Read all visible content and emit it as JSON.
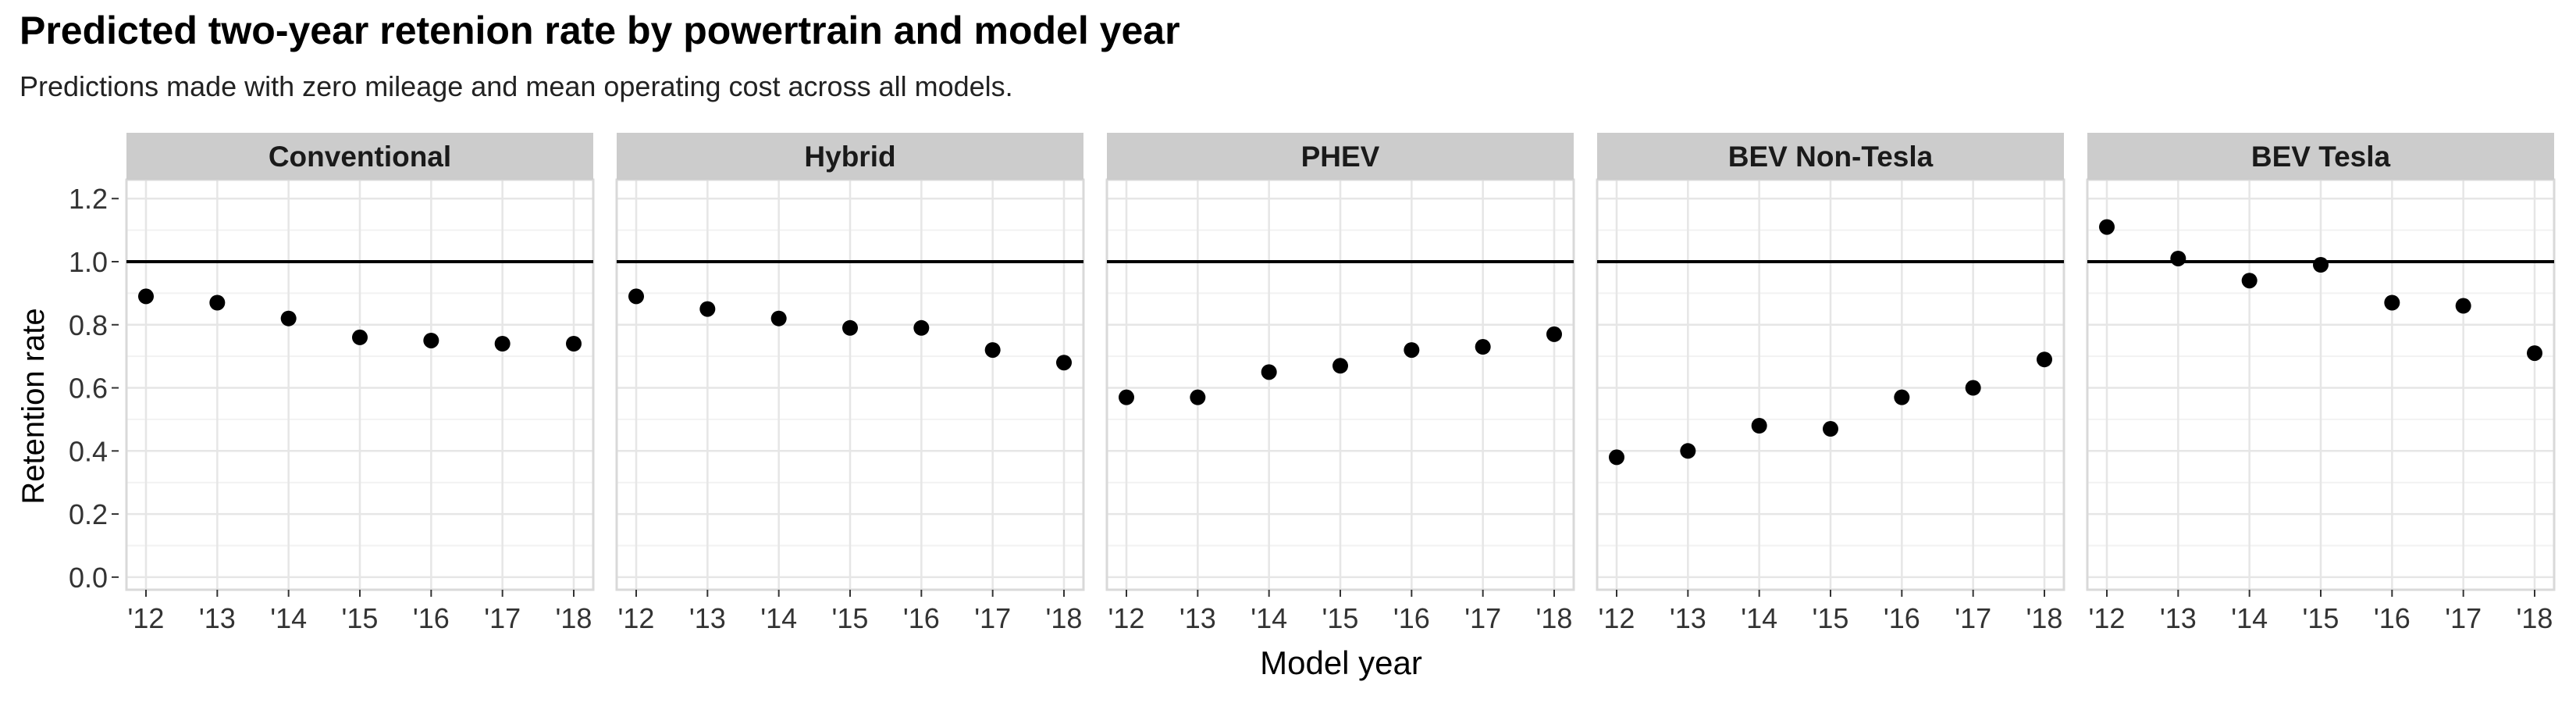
{
  "chart_data": {
    "type": "scatter",
    "title": "Predicted two-year retenion rate by powertrain and model year",
    "subtitle": "Predictions made with zero mileage and mean operating cost across all models.",
    "xlabel": "Model year",
    "ylabel": "Retention rate",
    "x_categories": [
      "'12",
      "'13",
      "'14",
      "'15",
      "'16",
      "'17",
      "'18"
    ],
    "y_ticks": [
      "0.0",
      "0.2",
      "0.4",
      "0.6",
      "0.8",
      "1.0",
      "1.2"
    ],
    "y_tick_values": [
      0.0,
      0.2,
      0.4,
      0.6,
      0.8,
      1.0,
      1.2
    ],
    "ylim": [
      -0.04,
      1.26
    ],
    "reference_line": 1.0,
    "grid": true,
    "legend": "none",
    "facets": [
      {
        "name": "Conventional",
        "values": [
          0.89,
          0.87,
          0.82,
          0.76,
          0.75,
          0.74,
          0.74
        ]
      },
      {
        "name": "Hybrid",
        "values": [
          0.89,
          0.85,
          0.82,
          0.79,
          0.79,
          0.72,
          0.68
        ]
      },
      {
        "name": "PHEV",
        "values": [
          0.57,
          0.57,
          0.65,
          0.67,
          0.72,
          0.73,
          0.77
        ]
      },
      {
        "name": "BEV Non-Tesla",
        "values": [
          0.38,
          0.4,
          0.48,
          0.47,
          0.57,
          0.6,
          0.69
        ]
      },
      {
        "name": "BEV Tesla",
        "values": [
          1.11,
          1.01,
          0.94,
          0.99,
          0.87,
          0.86,
          0.71
        ]
      }
    ],
    "colors": {
      "point": "#000000",
      "reference_line": "#000000",
      "strip_fill": "#cccccc",
      "panel_border": "#d9d9d9",
      "grid_major": "#e6e6e6",
      "grid_minor": "#f2f2f2",
      "tick_text": "#333333"
    }
  }
}
